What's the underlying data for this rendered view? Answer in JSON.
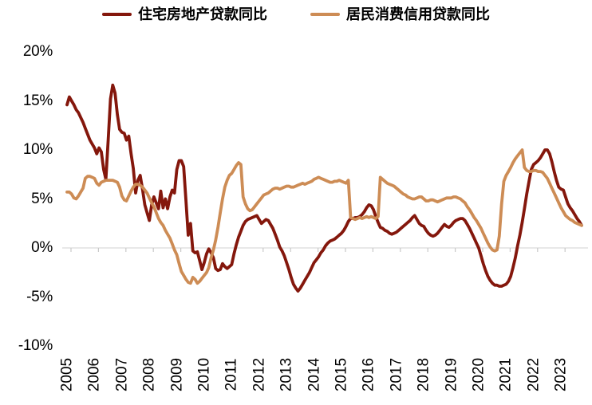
{
  "legend": {
    "items": [
      {
        "id": "residential",
        "label": "住宅房地产贷款同比",
        "color": "#84170c"
      },
      {
        "id": "consumer",
        "label": "居民消费信用贷款同比",
        "color": "#cd8c55"
      }
    ]
  },
  "chart_style": {
    "background": "#ffffff",
    "axis_color": "#d9d9d9",
    "tick_color": "#c9c9c9",
    "label_color": "#000000",
    "line_width": 3.8
  },
  "chart_data": {
    "type": "line",
    "title": "",
    "xlabel": "",
    "ylabel": "",
    "x_unit": "year (monthly points)",
    "y_unit": "percent YoY",
    "xlim": [
      2004.95,
      2023.95
    ],
    "ylim": [
      -10,
      20
    ],
    "grid": "baseline-at-zero-only",
    "legend_position": "top-center",
    "x_tick_labels": [
      "2005",
      "2006",
      "2007",
      "2008",
      "2009",
      "2010",
      "2011",
      "2012",
      "2013",
      "2014",
      "2015",
      "2016",
      "2017",
      "2018",
      "2019",
      "2020",
      "2021",
      "2022",
      "2023"
    ],
    "y_ticks": [
      20,
      15,
      10,
      5,
      0,
      -5,
      -10
    ],
    "y_tick_labels": [
      "20%",
      "15%",
      "10%",
      "5%",
      "0%",
      "-5%",
      "-10%"
    ],
    "x_start": 2005.0,
    "x_step_years": 0.08333,
    "series": [
      {
        "name": "住宅房地产贷款同比",
        "id": "residential-mortgage-line",
        "color": "#84170c",
        "values": [
          14.6,
          15.4,
          15.0,
          14.6,
          14.1,
          13.8,
          13.3,
          12.8,
          12.2,
          11.6,
          11.0,
          10.6,
          10.2,
          9.6,
          10.2,
          9.8,
          8.0,
          7.0,
          11.0,
          15.2,
          16.6,
          15.8,
          13.6,
          12.1,
          11.8,
          11.7,
          11.0,
          11.4,
          9.6,
          8.1,
          5.6,
          6.9,
          7.4,
          6.0,
          4.4,
          3.6,
          2.8,
          4.4,
          5.2,
          4.6,
          4.0,
          5.8,
          4.1,
          5.0,
          4.0,
          5.2,
          5.9,
          5.6,
          8.0,
          8.9,
          8.9,
          8.3,
          4.8,
          1.3,
          2.5,
          -0.3,
          -0.5,
          -0.4,
          -1.3,
          -2.2,
          -1.5,
          -0.6,
          -0.1,
          -0.5,
          -1.0,
          -2.1,
          -2.3,
          -2.2,
          -1.6,
          -1.9,
          -2.1,
          -1.9,
          -1.7,
          -0.6,
          0.3,
          1.1,
          1.7,
          2.3,
          2.7,
          2.9,
          3.0,
          3.1,
          3.2,
          3.3,
          2.9,
          2.5,
          2.7,
          2.9,
          2.8,
          2.4,
          2.0,
          1.4,
          0.8,
          0.1,
          -0.3,
          -0.8,
          -1.5,
          -2.2,
          -3.0,
          -3.7,
          -4.1,
          -4.4,
          -4.1,
          -3.7,
          -3.3,
          -2.9,
          -2.5,
          -2.0,
          -1.5,
          -1.2,
          -0.9,
          -0.5,
          -0.2,
          0.2,
          0.5,
          0.7,
          0.8,
          0.9,
          1.1,
          1.3,
          1.5,
          1.8,
          2.2,
          2.7,
          3.0,
          3.0,
          3.1,
          3.1,
          3.2,
          3.4,
          3.7,
          4.1,
          4.4,
          4.3,
          3.9,
          3.2,
          2.6,
          2.1,
          2.0,
          1.8,
          1.7,
          1.5,
          1.4,
          1.5,
          1.6,
          1.8,
          2.0,
          2.2,
          2.4,
          2.6,
          2.8,
          3.1,
          3.3,
          2.9,
          2.5,
          2.3,
          2.2,
          1.8,
          1.5,
          1.3,
          1.2,
          1.3,
          1.5,
          1.8,
          2.1,
          2.4,
          2.2,
          2.1,
          2.3,
          2.6,
          2.8,
          2.9,
          3.0,
          3.0,
          2.8,
          2.4,
          2.0,
          1.5,
          1.0,
          0.5,
          0.0,
          -0.8,
          -1.6,
          -2.3,
          -2.9,
          -3.3,
          -3.6,
          -3.8,
          -3.8,
          -3.9,
          -3.9,
          -3.8,
          -3.7,
          -3.4,
          -2.9,
          -2.0,
          -1.0,
          0.2,
          1.3,
          2.6,
          4.0,
          5.5,
          6.8,
          8.0,
          8.5,
          8.7,
          8.9,
          9.2,
          9.6,
          10.0,
          10.0,
          9.6,
          8.8,
          7.8,
          6.9,
          6.2,
          6.0,
          5.9,
          5.2,
          4.5,
          4.1,
          3.8,
          3.4,
          3.0,
          2.7,
          2.3
        ]
      },
      {
        "name": "居民消费信用贷款同比",
        "id": "consumer-credit-line",
        "color": "#cd8c55",
        "values": [
          5.7,
          5.7,
          5.5,
          5.1,
          5.0,
          5.3,
          5.7,
          6.1,
          7.1,
          7.3,
          7.3,
          7.2,
          7.1,
          6.6,
          6.4,
          6.7,
          6.8,
          6.9,
          6.9,
          6.9,
          6.9,
          6.8,
          6.7,
          6.2,
          5.3,
          4.9,
          4.8,
          5.3,
          5.8,
          6.2,
          6.5,
          6.5,
          6.4,
          6.2,
          5.9,
          5.6,
          5.1,
          4.6,
          4.2,
          3.6,
          3.0,
          2.6,
          2.3,
          1.8,
          1.4,
          1.0,
          0.4,
          -0.2,
          -0.7,
          -1.6,
          -2.4,
          -2.8,
          -3.2,
          -3.5,
          -3.6,
          -3.0,
          -3.2,
          -3.6,
          -3.4,
          -3.1,
          -2.8,
          -2.5,
          -2.0,
          -1.0,
          -0.2,
          0.8,
          2.1,
          3.6,
          5.0,
          6.2,
          6.9,
          7.4,
          7.6,
          8.0,
          8.4,
          8.7,
          8.5,
          5.2,
          4.5,
          4.0,
          3.8,
          3.9,
          4.2,
          4.5,
          4.8,
          5.1,
          5.4,
          5.5,
          5.6,
          5.8,
          6.0,
          6.1,
          6.1,
          6.0,
          6.1,
          6.2,
          6.3,
          6.3,
          6.2,
          6.2,
          6.3,
          6.4,
          6.5,
          6.6,
          6.5,
          6.6,
          6.7,
          6.8,
          7.0,
          7.1,
          7.2,
          7.1,
          7.0,
          6.9,
          6.8,
          6.7,
          6.7,
          6.8,
          6.8,
          6.9,
          6.8,
          6.7,
          6.6,
          6.9,
          3.1,
          3.0,
          2.9,
          3.0,
          3.1,
          3.0,
          3.1,
          3.2,
          3.1,
          3.2,
          3.1,
          3.0,
          3.2,
          7.2,
          7.0,
          6.8,
          6.6,
          6.5,
          6.4,
          6.3,
          6.1,
          5.9,
          5.7,
          5.5,
          5.4,
          5.2,
          5.1,
          5.0,
          5.0,
          5.1,
          5.2,
          5.2,
          5.0,
          4.8,
          4.8,
          4.9,
          4.9,
          4.8,
          4.7,
          4.8,
          4.9,
          5.0,
          5.1,
          5.1,
          5.1,
          5.2,
          5.2,
          5.1,
          5.0,
          4.8,
          4.6,
          4.2,
          3.9,
          3.5,
          3.1,
          2.8,
          2.4,
          2.0,
          1.5,
          1.0,
          0.5,
          0.1,
          -0.2,
          -0.3,
          -0.2,
          1.2,
          4.5,
          6.8,
          7.4,
          7.8,
          8.2,
          8.7,
          9.1,
          9.4,
          9.7,
          10.0,
          8.2,
          7.9,
          7.8,
          7.8,
          7.9,
          7.9,
          7.8,
          7.8,
          7.7,
          7.4,
          7.1,
          6.6,
          6.1,
          5.6,
          5.1,
          4.6,
          4.1,
          3.7,
          3.3,
          3.1,
          2.9,
          2.8,
          2.6,
          2.5,
          2.4,
          2.3
        ]
      }
    ]
  }
}
